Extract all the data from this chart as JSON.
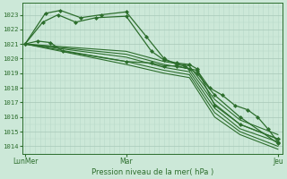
{
  "xlabel": "Pression niveau de la mer( hPa )",
  "bg_color": "#cce8d8",
  "grid_color_major": "#a8c8b8",
  "grid_color_minor": "#b8d8c8",
  "line_color": "#2d6e2d",
  "tick_color": "#2d6e2d",
  "ylim": [
    1013.5,
    1023.8
  ],
  "yticks": [
    1014,
    1015,
    1016,
    1017,
    1018,
    1019,
    1020,
    1021,
    1022,
    1023
  ],
  "xtick_labels": [
    "LunMer",
    "Mar",
    "Jeu"
  ],
  "xtick_pos": [
    0.0,
    0.4,
    1.0
  ],
  "lines": [
    {
      "x": [
        0.0,
        0.08,
        0.14,
        0.22,
        0.3,
        0.4,
        0.48,
        0.55,
        0.6,
        0.63,
        0.68,
        0.75,
        0.85,
        1.0
      ],
      "y": [
        1021.0,
        1023.1,
        1023.3,
        1022.8,
        1023.0,
        1023.2,
        1021.5,
        1020.0,
        1019.6,
        1019.5,
        1019.0,
        1017.5,
        1016.0,
        1014.2
      ],
      "marker": "D",
      "ms": 2.0,
      "lw": 0.9
    },
    {
      "x": [
        0.0,
        0.07,
        0.13,
        0.2,
        0.28,
        0.4,
        0.5,
        0.55,
        0.6,
        0.65,
        0.68,
        0.75,
        0.85,
        1.0
      ],
      "y": [
        1021.0,
        1022.5,
        1023.0,
        1022.5,
        1022.8,
        1022.9,
        1020.5,
        1019.9,
        1019.7,
        1019.6,
        1019.3,
        1016.8,
        1015.5,
        1014.5
      ],
      "marker": "D",
      "ms": 2.0,
      "lw": 0.9
    },
    {
      "x": [
        0.0,
        0.4,
        0.55,
        0.65,
        0.75,
        0.85,
        1.0
      ],
      "y": [
        1021.0,
        1020.5,
        1019.8,
        1019.5,
        1017.2,
        1015.8,
        1014.8
      ],
      "marker": null,
      "ms": 0,
      "lw": 0.8
    },
    {
      "x": [
        0.0,
        0.4,
        0.55,
        0.65,
        0.75,
        0.85,
        1.0
      ],
      "y": [
        1021.0,
        1020.3,
        1019.6,
        1019.3,
        1016.9,
        1015.5,
        1014.5
      ],
      "marker": null,
      "ms": 0,
      "lw": 0.8
    },
    {
      "x": [
        0.0,
        0.4,
        0.55,
        0.65,
        0.75,
        0.85,
        1.0
      ],
      "y": [
        1021.0,
        1020.1,
        1019.4,
        1019.1,
        1016.6,
        1015.2,
        1014.3
      ],
      "marker": null,
      "ms": 0,
      "lw": 0.8
    },
    {
      "x": [
        0.0,
        0.4,
        0.55,
        0.65,
        0.75,
        0.85,
        1.0
      ],
      "y": [
        1021.0,
        1019.8,
        1019.2,
        1018.9,
        1016.3,
        1015.0,
        1014.0
      ],
      "marker": null,
      "ms": 0,
      "lw": 0.8
    },
    {
      "x": [
        0.0,
        0.4,
        0.55,
        0.65,
        0.75,
        0.85,
        1.0
      ],
      "y": [
        1021.0,
        1019.6,
        1019.0,
        1018.7,
        1016.0,
        1014.8,
        1013.8
      ],
      "marker": null,
      "ms": 0,
      "lw": 0.8
    },
    {
      "x": [
        0.0,
        0.05,
        0.1,
        0.15,
        0.4,
        0.5,
        0.55,
        0.6,
        0.65,
        0.68,
        0.73,
        0.78,
        0.83,
        0.88,
        0.92,
        0.96,
        1.0
      ],
      "y": [
        1021.0,
        1021.2,
        1021.1,
        1020.5,
        1019.8,
        1019.7,
        1019.5,
        1019.5,
        1019.3,
        1019.2,
        1018.0,
        1017.5,
        1016.8,
        1016.5,
        1016.0,
        1015.2,
        1014.3
      ],
      "marker": "D",
      "ms": 2.0,
      "lw": 0.9
    }
  ]
}
